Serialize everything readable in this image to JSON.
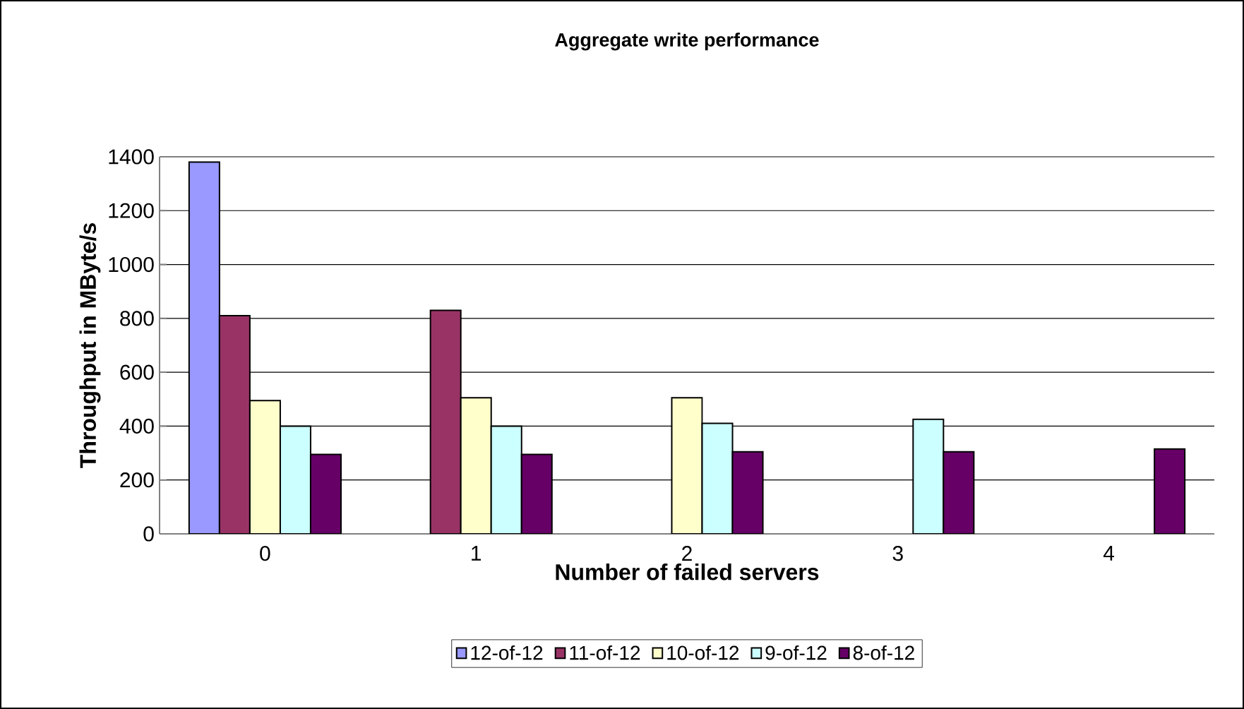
{
  "chart_data": {
    "type": "bar",
    "title": "Aggregate write performance",
    "xlabel": "Number of failed servers",
    "ylabel": "Throughput in MByte/s",
    "categories": [
      "0",
      "1",
      "2",
      "3",
      "4"
    ],
    "series": [
      {
        "name": "12-of-12",
        "color": "#9999ff",
        "values": [
          1380,
          null,
          null,
          null,
          null
        ]
      },
      {
        "name": "11-of-12",
        "color": "#993366",
        "values": [
          810,
          830,
          null,
          null,
          null
        ]
      },
      {
        "name": "10-of-12",
        "color": "#ffffcc",
        "values": [
          495,
          505,
          505,
          null,
          null
        ]
      },
      {
        "name": "9-of-12",
        "color": "#ccffff",
        "values": [
          400,
          400,
          410,
          425,
          null
        ]
      },
      {
        "name": "8-of-12",
        "color": "#660066",
        "values": [
          295,
          295,
          305,
          305,
          315
        ]
      }
    ],
    "ylim": [
      0,
      1400
    ],
    "yticks": [
      0,
      200,
      400,
      600,
      800,
      1000,
      1200,
      1400
    ],
    "grid": "y",
    "legend": "bottom"
  }
}
